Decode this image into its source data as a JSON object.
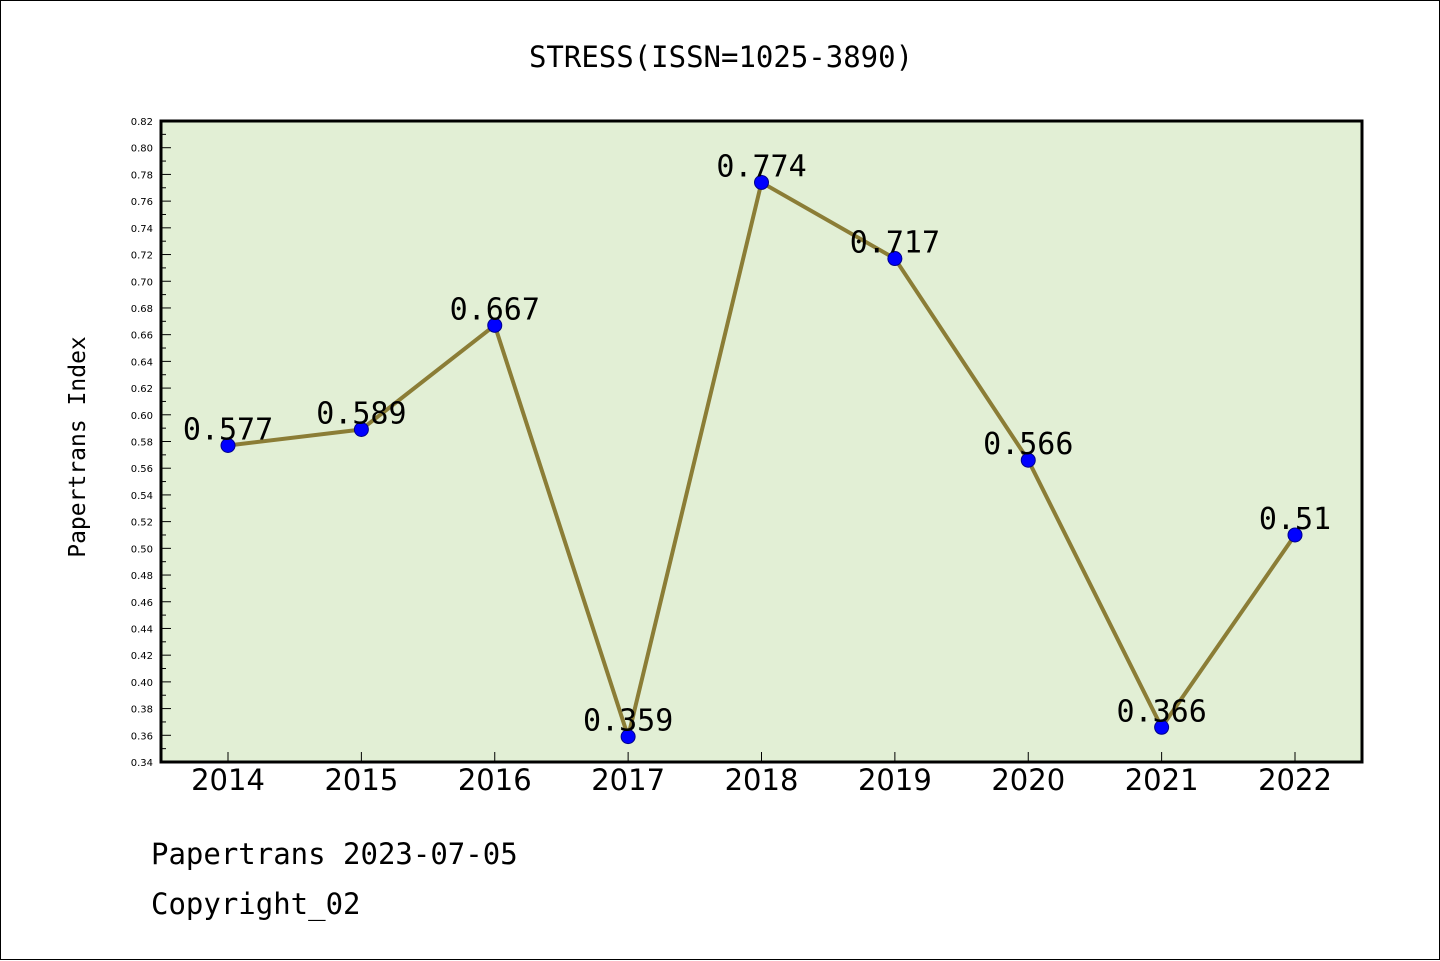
{
  "chart_data": {
    "type": "line",
    "title": "STRESS(ISSN=1025-3890)",
    "ylabel": "Papertrans Index",
    "xlabel": "",
    "categories": [
      "2014",
      "2015",
      "2016",
      "2017",
      "2018",
      "2019",
      "2020",
      "2021",
      "2022"
    ],
    "values": [
      0.577,
      0.589,
      0.667,
      0.359,
      0.774,
      0.717,
      0.566,
      0.366,
      0.51
    ],
    "data_labels": [
      "0.577",
      "0.589",
      "0.667",
      "0.359",
      "0.774",
      "0.717",
      "0.566",
      "0.366",
      "0.51"
    ],
    "ylim": [
      0.34,
      0.82
    ],
    "ytick_step": 0.02,
    "grid": false,
    "colors": {
      "plot_background": "#e2efd5",
      "line": "#8b7d36",
      "marker": "#0000ff",
      "marker_edge": "#00008b"
    }
  },
  "footer": {
    "line1": "Papertrans 2023-07-05",
    "line2": "Copyright_02"
  }
}
